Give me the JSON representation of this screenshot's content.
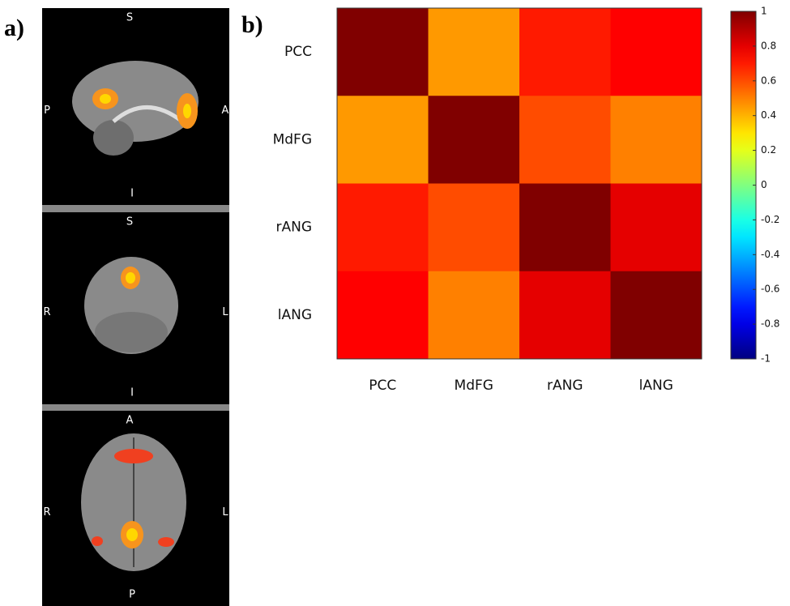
{
  "panel_labels": [
    "a)",
    "b)"
  ],
  "brain_views": [
    {
      "top": "S",
      "bottom": "I",
      "left": "P",
      "right": "A"
    },
    {
      "top": "S",
      "bottom": "I",
      "left": "R",
      "right": "L"
    },
    {
      "top": "A",
      "bottom": "P",
      "left": "R",
      "right": "L"
    }
  ],
  "chart_data": {
    "type": "heatmap",
    "x_categories": [
      "PCC",
      "MdFG",
      "rANG",
      "lANG"
    ],
    "y_categories": [
      "PCC",
      "MdFG",
      "rANG",
      "lANG"
    ],
    "values": [
      [
        1,
        0.45,
        0.7,
        0.75
      ],
      [
        0.45,
        1,
        0.6,
        0.5
      ],
      [
        0.7,
        0.6,
        1,
        0.8
      ],
      [
        0.75,
        0.5,
        0.8,
        1
      ]
    ],
    "colormap": "jet",
    "zlim": [
      -1,
      1
    ],
    "zticks": [
      1,
      0.8,
      0.6,
      0.4,
      0.2,
      0,
      -0.2,
      -0.4,
      -0.6,
      -0.8,
      -1
    ]
  }
}
